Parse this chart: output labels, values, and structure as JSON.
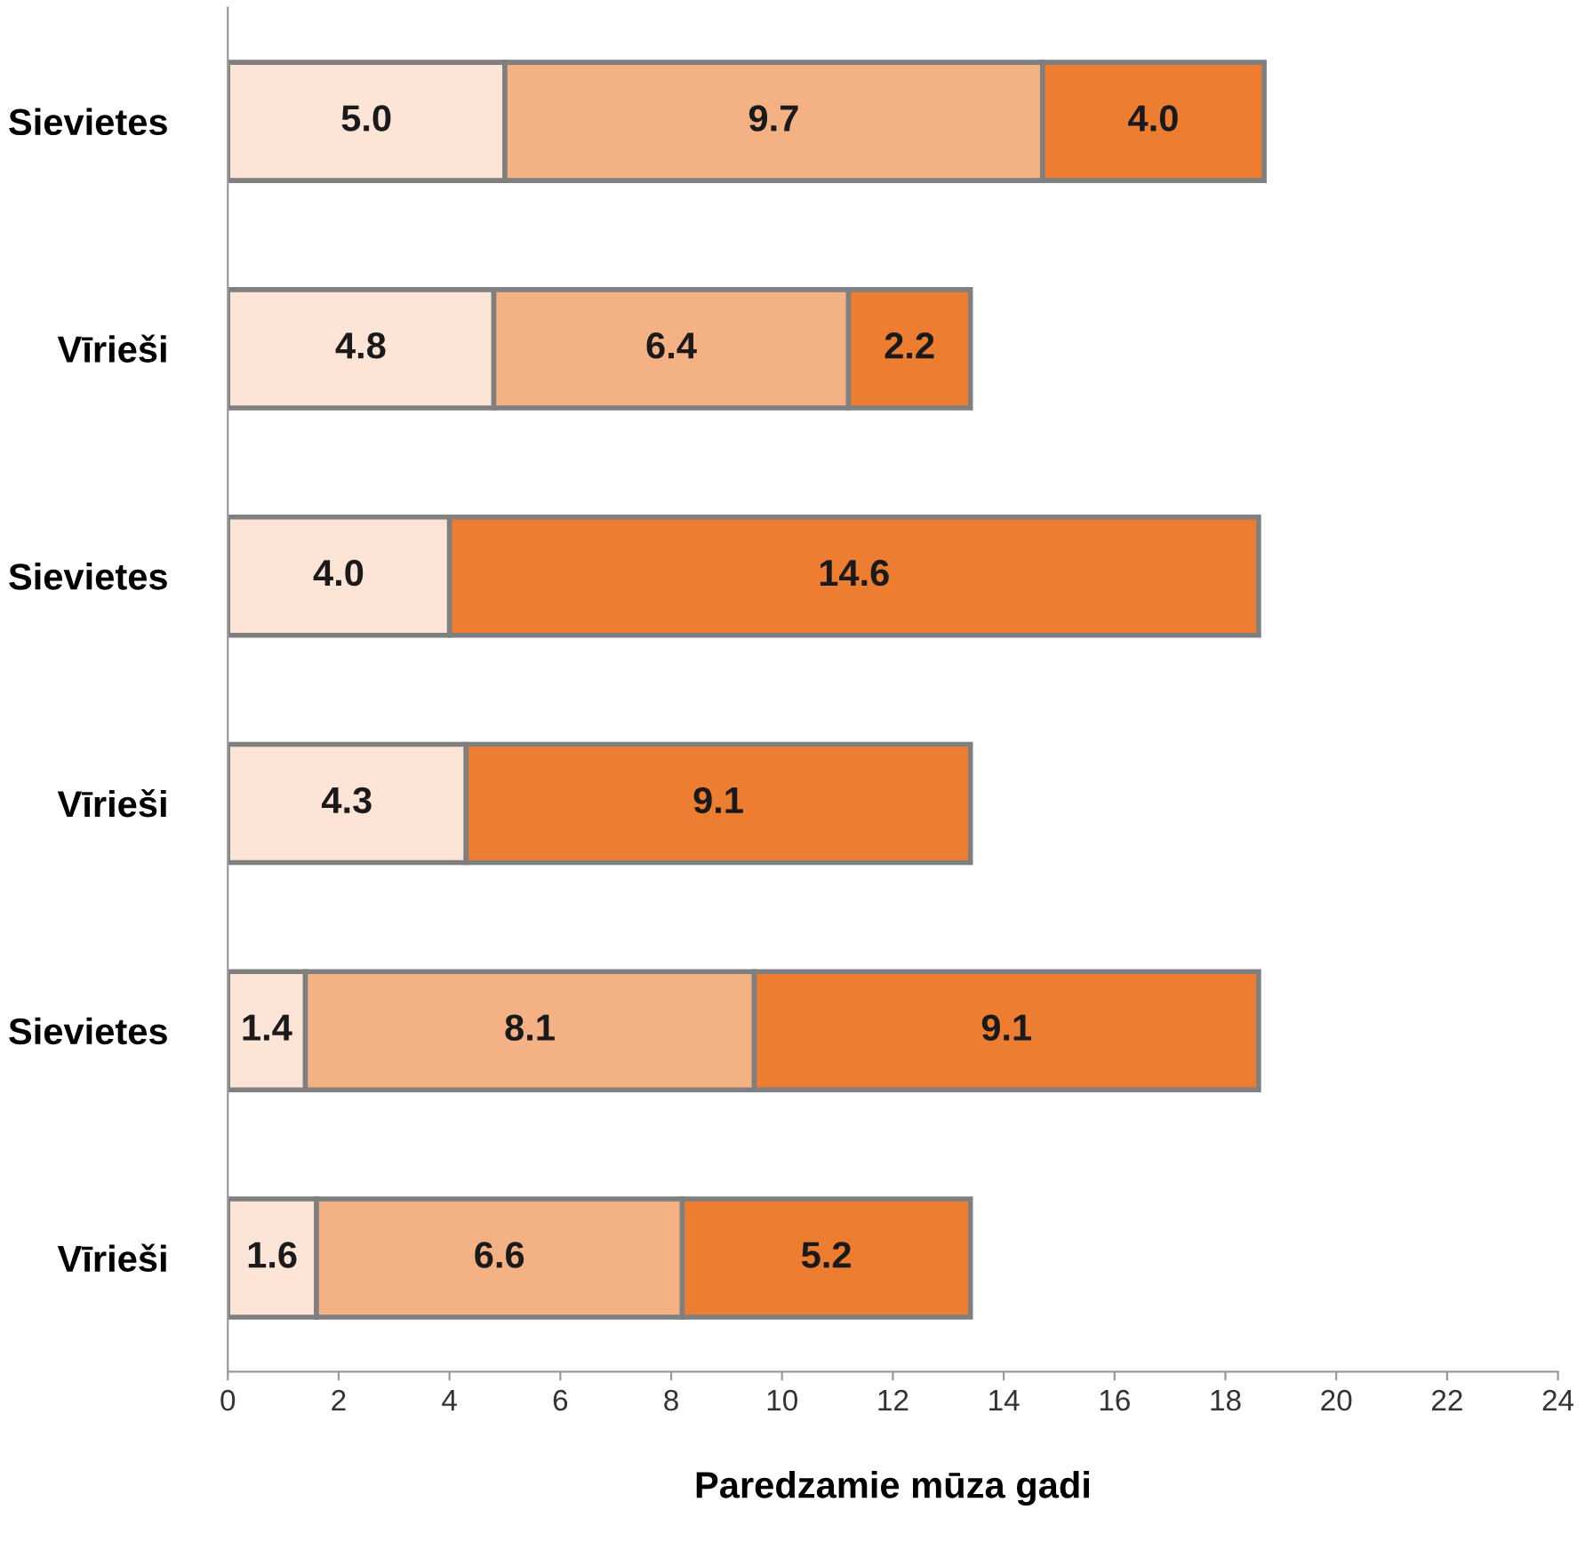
{
  "chart_data": {
    "type": "bar",
    "orientation": "horizontal",
    "stacked": true,
    "grid": false,
    "legend": false,
    "xlabel": "Paredzamie mūza gadi",
    "categories": [
      "Sievietes",
      "Vīrieši",
      "Sievietes",
      "Vīrieši",
      "Sievietes",
      "Vīrieši"
    ],
    "xlim": [
      0,
      24
    ],
    "xticks": [
      0,
      2,
      4,
      6,
      8,
      10,
      12,
      14,
      16,
      18,
      20,
      22,
      24
    ],
    "series": [
      {
        "color": "#fce4d6",
        "values": [
          5.0,
          4.8,
          4.0,
          4.3,
          1.4,
          1.6
        ],
        "value_labels": [
          "5.0",
          "4.8",
          "4.0",
          "4.3",
          "1.4",
          "1.6"
        ]
      },
      {
        "color": "#f4b183",
        "values": [
          9.7,
          6.4,
          null,
          null,
          8.1,
          6.6
        ],
        "value_labels": [
          "9.7",
          "6.4",
          null,
          null,
          "8.1",
          "6.6"
        ]
      },
      {
        "color": "#ed7d31",
        "values": [
          4.0,
          2.2,
          14.6,
          9.1,
          9.1,
          5.2
        ],
        "value_labels": [
          "4.0",
          "2.2",
          "14.6",
          "9.1",
          "9.1",
          "5.2"
        ]
      }
    ]
  }
}
